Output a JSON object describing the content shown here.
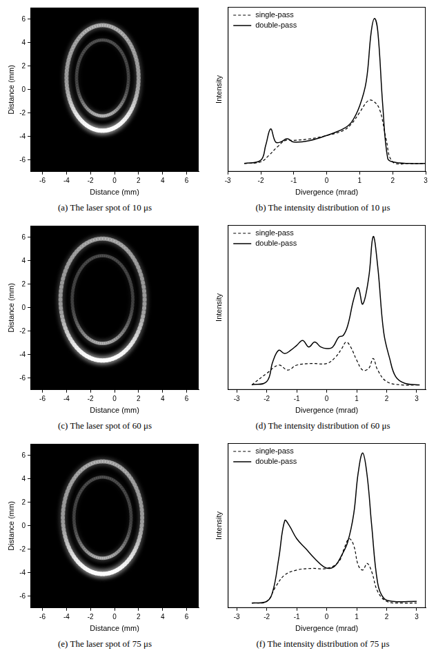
{
  "chart_data": [
    {
      "type": "image",
      "title": "(a) The laser spot of 10 μs",
      "x_label": "Distance (mm)",
      "y_label": "Distance (mm)",
      "xlim": [
        -7,
        7
      ],
      "ylim": [
        -7,
        7
      ],
      "xticks": [
        -6,
        -4,
        -2,
        0,
        2,
        4,
        6
      ],
      "yticks": [
        -6,
        -4,
        -2,
        0,
        2,
        4,
        6
      ],
      "spot": {
        "center": [
          -1,
          1
        ],
        "radii": [
          3,
          4.5
        ]
      }
    },
    {
      "type": "line",
      "title": "(b) The intensity distribution of 10 μs",
      "x_label": "Divergence (mrad)",
      "y_label": "Intensity",
      "xlim": [
        -3,
        3
      ],
      "ylim": [
        0,
        10
      ],
      "xticks": [
        -3,
        -2,
        -1,
        0,
        1,
        2,
        3
      ],
      "tick_labels": "x",
      "legend": "upper left",
      "series": [
        {
          "name": "single-pass",
          "color": "#000000",
          "line_style": "dashed",
          "x": [
            -2.5,
            -2,
            -1.75,
            -1.5,
            -1.25,
            -1,
            -0.5,
            0,
            0.5,
            0.75,
            1,
            1.25,
            1.4,
            1.6,
            1.8,
            2,
            2.5,
            3
          ],
          "values": [
            0.5,
            0.6,
            1.0,
            1.5,
            1.9,
            1.9,
            2.0,
            2.2,
            2.5,
            2.9,
            3.6,
            4.3,
            4.3,
            3.8,
            2.0,
            0.6,
            0.5,
            0.5
          ]
        },
        {
          "name": "double-pass",
          "color": "#000000",
          "line_style": "solid",
          "x": [
            -2.5,
            -2,
            -1.85,
            -1.7,
            -1.55,
            -1.4,
            -1.2,
            -1,
            -0.5,
            0,
            0.5,
            0.75,
            1,
            1.2,
            1.35,
            1.45,
            1.55,
            1.7,
            1.85,
            2,
            2.5,
            3
          ],
          "values": [
            0.5,
            0.7,
            1.6,
            2.6,
            1.8,
            1.8,
            2.0,
            1.8,
            1.9,
            2.2,
            2.6,
            3.0,
            4.0,
            5.5,
            8.5,
            9.3,
            8.5,
            4.0,
            0.8,
            0.6,
            0.5,
            0.5
          ]
        }
      ]
    },
    {
      "type": "image",
      "title": "(c) The laser spot of 60 μs",
      "x_label": "Distance (mm)",
      "y_label": "Distance (mm)",
      "xlim": [
        -7,
        7
      ],
      "ylim": [
        -7,
        7
      ],
      "xticks": [
        -6,
        -4,
        -2,
        0,
        2,
        4,
        6
      ],
      "yticks": [
        -6,
        -4,
        -2,
        0,
        2,
        4,
        6
      ],
      "spot": {
        "center": [
          -1,
          0.7
        ],
        "radii": [
          3.5,
          5.2
        ]
      }
    },
    {
      "type": "line",
      "title": "(d) The intensity distribution of 60 μs",
      "x_label": "Divergence (mrad)",
      "y_label": "Intensity",
      "xlim": [
        -3.3,
        3.3
      ],
      "ylim": [
        0,
        10
      ],
      "xticks": [
        -3,
        -2,
        -1,
        0,
        1,
        2,
        3
      ],
      "tick_labels": "x",
      "legend": "upper left",
      "series": [
        {
          "name": "single-pass",
          "color": "#000000",
          "line_style": "dashed",
          "x": [
            -2.5,
            -2,
            -1.6,
            -1.3,
            -1,
            -0.5,
            0,
            0.3,
            0.5,
            0.65,
            0.8,
            1,
            1.2,
            1.4,
            1.55,
            1.7,
            2,
            2.5,
            3.1
          ],
          "values": [
            0.3,
            1.0,
            1.5,
            1.2,
            1.5,
            1.6,
            1.6,
            2.0,
            2.5,
            2.9,
            2.6,
            1.8,
            1.2,
            1.3,
            1.9,
            1.2,
            0.5,
            0.3,
            0.3
          ]
        },
        {
          "name": "double-pass",
          "color": "#000000",
          "line_style": "solid",
          "x": [
            -2.5,
            -2,
            -1.8,
            -1.6,
            -1.4,
            -1.2,
            -1,
            -0.8,
            -0.6,
            -0.4,
            -0.2,
            0,
            0.2,
            0.4,
            0.55,
            0.7,
            0.9,
            1.05,
            1.2,
            1.4,
            1.55,
            1.7,
            1.9,
            2.1,
            2.3,
            2.6,
            3.1
          ],
          "values": [
            0.3,
            0.5,
            1.7,
            2.4,
            2.2,
            2.4,
            2.7,
            3.0,
            2.6,
            2.9,
            2.6,
            2.5,
            2.6,
            3.2,
            3.3,
            3.9,
            5.5,
            6.2,
            5.2,
            6.8,
            9.3,
            7.5,
            3.5,
            1.9,
            0.8,
            0.4,
            0.3
          ]
        }
      ]
    },
    {
      "type": "image",
      "title": "(e) The laser spot of 75 μs",
      "x_label": "Distance (mm)",
      "y_label": "Distance (mm)",
      "xlim": [
        -7,
        7
      ],
      "ylim": [
        -7,
        7
      ],
      "xticks": [
        -6,
        -4,
        -2,
        0,
        2,
        4,
        6
      ],
      "yticks": [
        -6,
        -4,
        -2,
        0,
        2,
        4,
        6
      ],
      "spot": {
        "center": [
          -1,
          0.7
        ],
        "radii": [
          3.3,
          4.8
        ]
      }
    },
    {
      "type": "line",
      "title": "(f) The intensity distribution of 75 μs",
      "x_label": "Divergence (mrad)",
      "y_label": "Intensity",
      "xlim": [
        -3.3,
        3.3
      ],
      "ylim": [
        0,
        10
      ],
      "xticks": [
        -3,
        -2,
        -1,
        0,
        1,
        2,
        3
      ],
      "tick_labels": "x",
      "legend": "upper left",
      "series": [
        {
          "name": "single-pass",
          "color": "#000000",
          "line_style": "dashed",
          "x": [
            -2.5,
            -2,
            -1.7,
            -1.4,
            -1,
            -0.5,
            0,
            0.4,
            0.6,
            0.75,
            0.9,
            1.05,
            1.2,
            1.35,
            1.5,
            1.7,
            2,
            2.5,
            3
          ],
          "values": [
            0.3,
            0.4,
            1.3,
            2.0,
            2.3,
            2.4,
            2.4,
            2.8,
            3.7,
            4.2,
            3.8,
            2.6,
            2.3,
            2.7,
            2.2,
            1.0,
            0.4,
            0.3,
            0.3
          ]
        },
        {
          "name": "double-pass",
          "color": "#000000",
          "line_style": "solid",
          "x": [
            -2.5,
            -2,
            -1.8,
            -1.6,
            -1.4,
            -1.25,
            -1,
            -0.7,
            -0.4,
            -0.1,
            0.1,
            0.3,
            0.5,
            0.7,
            0.9,
            1.05,
            1.2,
            1.35,
            1.5,
            1.7,
            1.9,
            2.2,
            3
          ],
          "values": [
            0.3,
            0.4,
            1.0,
            3.0,
            5.3,
            5.0,
            4.2,
            3.6,
            3.0,
            2.5,
            2.4,
            2.6,
            3.2,
            4.0,
            5.7,
            8.2,
            9.4,
            8.0,
            5.0,
            1.5,
            0.6,
            0.4,
            0.4
          ]
        }
      ]
    }
  ]
}
